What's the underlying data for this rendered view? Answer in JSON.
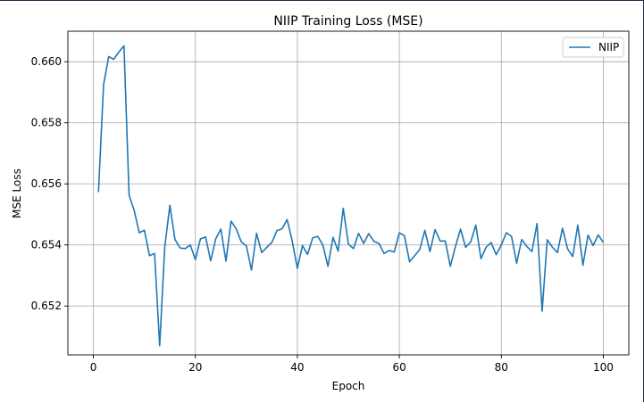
{
  "chart_data": {
    "type": "line",
    "title": "NIIP Training Loss (MSE)",
    "xlabel": "Epoch",
    "ylabel": "MSE Loss",
    "xlim": [
      -5,
      105
    ],
    "ylim": [
      0.6504,
      0.661
    ],
    "xticks": [
      0,
      20,
      40,
      60,
      80,
      100
    ],
    "yticks": [
      0.652,
      0.654,
      0.656,
      0.658,
      0.66
    ],
    "xtick_labels": [
      "0",
      "20",
      "40",
      "60",
      "80",
      "100"
    ],
    "ytick_labels": [
      "0.652",
      "0.654",
      "0.656",
      "0.658",
      "0.660"
    ],
    "grid": true,
    "legend": {
      "position": "top-right",
      "entries": [
        "NIIP"
      ]
    },
    "series": [
      {
        "name": "NIIP",
        "color": "#1f77b4",
        "x": [
          1,
          2,
          3,
          4,
          5,
          6,
          7,
          8,
          9,
          10,
          11,
          12,
          13,
          14,
          15,
          16,
          17,
          18,
          19,
          20,
          21,
          22,
          23,
          24,
          25,
          26,
          27,
          28,
          29,
          30,
          31,
          32,
          33,
          34,
          35,
          36,
          37,
          38,
          39,
          40,
          41,
          42,
          43,
          44,
          45,
          46,
          47,
          48,
          49,
          50,
          51,
          52,
          53,
          54,
          55,
          56,
          57,
          58,
          59,
          60,
          61,
          62,
          63,
          64,
          65,
          66,
          67,
          68,
          69,
          70,
          71,
          72,
          73,
          74,
          75,
          76,
          77,
          78,
          79,
          80,
          81,
          82,
          83,
          84,
          85,
          86,
          87,
          88,
          89,
          90,
          91,
          92,
          93,
          94,
          95,
          96,
          97,
          98,
          99,
          100
        ],
        "values": [
          0.65573,
          0.65925,
          0.66017,
          0.66008,
          0.66032,
          0.66052,
          0.65563,
          0.65513,
          0.6544,
          0.65448,
          0.65365,
          0.65372,
          0.6507,
          0.65393,
          0.6553,
          0.65418,
          0.6539,
          0.65388,
          0.654,
          0.65352,
          0.6542,
          0.65426,
          0.65348,
          0.6542,
          0.65452,
          0.65347,
          0.65478,
          0.65453,
          0.6541,
          0.65397,
          0.65318,
          0.65438,
          0.65375,
          0.65392,
          0.65408,
          0.65447,
          0.65453,
          0.65483,
          0.65412,
          0.65323,
          0.65398,
          0.65369,
          0.65423,
          0.65428,
          0.654,
          0.6533,
          0.65425,
          0.6538,
          0.6552,
          0.65403,
          0.65388,
          0.65438,
          0.65405,
          0.65437,
          0.65412,
          0.65405,
          0.65372,
          0.65382,
          0.65377,
          0.6544,
          0.6543,
          0.65345,
          0.65365,
          0.65385,
          0.65448,
          0.65378,
          0.6545,
          0.65413,
          0.65413,
          0.6533,
          0.65395,
          0.65452,
          0.65392,
          0.6541,
          0.65465,
          0.65355,
          0.65392,
          0.65408,
          0.65368,
          0.654,
          0.6544,
          0.65428,
          0.6534,
          0.65418,
          0.65395,
          0.65378,
          0.6547,
          0.65183,
          0.65417,
          0.65393,
          0.65375,
          0.65455,
          0.65387,
          0.65362,
          0.65465,
          0.65333,
          0.65432,
          0.65398,
          0.65433,
          0.65408
        ]
      }
    ]
  }
}
